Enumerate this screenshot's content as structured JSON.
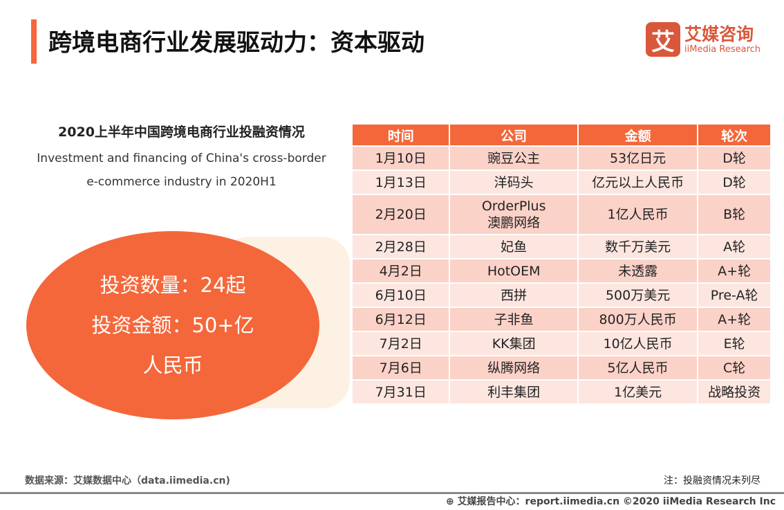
{
  "header": {
    "title": "跨境电商行业发展驱动力：资本驱动",
    "logo_cn": "艾媒咨询",
    "logo_en": "iiMedia Research",
    "logo_mark": "艾"
  },
  "left": {
    "subtitle": "2020上半年中国跨境电商行业投融资情况",
    "subtitle_en_1": "Investment and financing of China's cross-border",
    "subtitle_en_2": "e-commerce industry in 2020H1",
    "count": "投资数量：24起",
    "amount_1": "投资金额：50+亿",
    "amount_2": "人民币"
  },
  "table": {
    "headers": [
      "时间",
      "公司",
      "金额",
      "轮次"
    ],
    "rows": [
      [
        "1月10日",
        "豌豆公主",
        "53亿日元",
        "D轮"
      ],
      [
        "1月13日",
        "洋码头",
        "亿元以上人民币",
        "D轮"
      ],
      [
        "2月20日",
        "OrderPlus\n澳鹏网络",
        "1亿人民币",
        "B轮"
      ],
      [
        "2月28日",
        "妃鱼",
        "数千万美元",
        "A轮"
      ],
      [
        "4月2日",
        "HotOEM",
        "未透露",
        "A+轮"
      ],
      [
        "6月10日",
        "西拼",
        "500万美元",
        "Pre-A轮"
      ],
      [
        "6月12日",
        "子非鱼",
        "800万人民币",
        "A+轮"
      ],
      [
        "7月2日",
        "KK集团",
        "10亿人民币",
        "E轮"
      ],
      [
        "7月6日",
        "纵腾网络",
        "5亿人民币",
        "C轮"
      ],
      [
        "7月31日",
        "利丰集团",
        "1亿美元",
        "战略投资"
      ]
    ]
  },
  "footer": {
    "source": "数据来源：艾媒数据中心（data.iimedia.cn)",
    "note": "注：投融资情况未列尽",
    "copyright": "艾媒报告中心：report.iimedia.cn  ©2020  iiMedia Research  Inc"
  },
  "colors": {
    "accent": "#f4673a",
    "row_odd": "#fbd2c8",
    "row_even": "#fde6e0"
  }
}
